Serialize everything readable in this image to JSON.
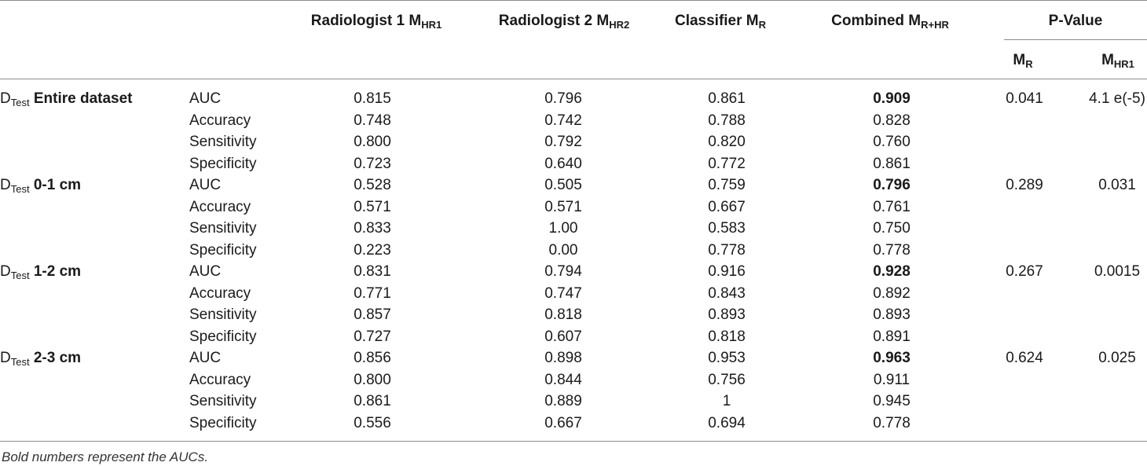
{
  "headers": {
    "rad1": {
      "main": "Radiologist 1 M",
      "sub": "HR1"
    },
    "rad2": {
      "main": "Radiologist 2 M",
      "sub": "HR2"
    },
    "classifier": {
      "main": "Classifier M",
      "sub": "R"
    },
    "combined": {
      "main": "Combined M",
      "sub": "R+HR"
    },
    "pvalue": "P-Value",
    "p_mr": {
      "main": "M",
      "sub": "R"
    },
    "p_mhr1": {
      "main": "M",
      "sub": "HR1"
    }
  },
  "groups": [
    {
      "prefix": "D",
      "prefix_sub": "Test",
      "name": "Entire dataset",
      "rows": [
        {
          "metric": "AUC",
          "rad1": "0.815",
          "rad2": "0.796",
          "classifier": "0.861",
          "combined": "0.909",
          "p_mr": "0.041",
          "p_mhr1": "4.1 e(-5)"
        },
        {
          "metric": "Accuracy",
          "rad1": "0.748",
          "rad2": "0.742",
          "classifier": "0.788",
          "combined": "0.828",
          "p_mr": "",
          "p_mhr1": ""
        },
        {
          "metric": "Sensitivity",
          "rad1": "0.800",
          "rad2": "0.792",
          "classifier": "0.820",
          "combined": "0.760",
          "p_mr": "",
          "p_mhr1": ""
        },
        {
          "metric": "Specificity",
          "rad1": "0.723",
          "rad2": "0.640",
          "classifier": "0.772",
          "combined": "0.861",
          "p_mr": "",
          "p_mhr1": ""
        }
      ]
    },
    {
      "prefix": "D",
      "prefix_sub": "Test",
      "name": "0-1 cm",
      "rows": [
        {
          "metric": "AUC",
          "rad1": "0.528",
          "rad2": "0.505",
          "classifier": "0.759",
          "combined": "0.796",
          "p_mr": "0.289",
          "p_mhr1": "0.031"
        },
        {
          "metric": "Accuracy",
          "rad1": "0.571",
          "rad2": "0.571",
          "classifier": "0.667",
          "combined": "0.761",
          "p_mr": "",
          "p_mhr1": ""
        },
        {
          "metric": "Sensitivity",
          "rad1": "0.833",
          "rad2": "1.00",
          "classifier": "0.583",
          "combined": "0.750",
          "p_mr": "",
          "p_mhr1": ""
        },
        {
          "metric": "Specificity",
          "rad1": "0.223",
          "rad2": "0.00",
          "classifier": "0.778",
          "combined": "0.778",
          "p_mr": "",
          "p_mhr1": ""
        }
      ]
    },
    {
      "prefix": "D",
      "prefix_sub": "Test",
      "name": "1-2 cm",
      "rows": [
        {
          "metric": "AUC",
          "rad1": "0.831",
          "rad2": "0.794",
          "classifier": "0.916",
          "combined": "0.928",
          "p_mr": "0.267",
          "p_mhr1": "0.0015"
        },
        {
          "metric": "Accuracy",
          "rad1": "0.771",
          "rad2": "0.747",
          "classifier": "0.843",
          "combined": "0.892",
          "p_mr": "",
          "p_mhr1": ""
        },
        {
          "metric": "Sensitivity",
          "rad1": "0.857",
          "rad2": "0.818",
          "classifier": "0.893",
          "combined": "0.893",
          "p_mr": "",
          "p_mhr1": ""
        },
        {
          "metric": "Specificity",
          "rad1": "0.727",
          "rad2": "0.607",
          "classifier": "0.818",
          "combined": "0.891",
          "p_mr": "",
          "p_mhr1": ""
        }
      ]
    },
    {
      "prefix": "D",
      "prefix_sub": "Test",
      "name": "2-3 cm",
      "rows": [
        {
          "metric": "AUC",
          "rad1": "0.856",
          "rad2": "0.898",
          "classifier": "0.953",
          "combined": "0.963",
          "p_mr": "0.624",
          "p_mhr1": "0.025"
        },
        {
          "metric": "Accuracy",
          "rad1": "0.800",
          "rad2": "0.844",
          "classifier": "0.756",
          "combined": "0.911",
          "p_mr": "",
          "p_mhr1": ""
        },
        {
          "metric": "Sensitivity",
          "rad1": "0.861",
          "rad2": "0.889",
          "classifier": "1",
          "combined": "0.945",
          "p_mr": "",
          "p_mhr1": ""
        },
        {
          "metric": "Specificity",
          "rad1": "0.556",
          "rad2": "0.667",
          "classifier": "0.694",
          "combined": "0.778",
          "p_mr": "",
          "p_mhr1": ""
        }
      ]
    }
  ],
  "footnote": "Bold numbers represent the AUCs."
}
